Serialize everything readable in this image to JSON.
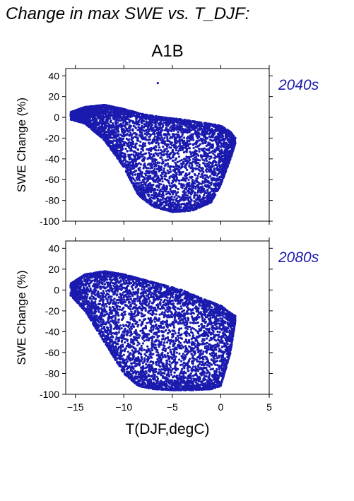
{
  "figure": {
    "title": "Change in max SWE vs. T_DJF:",
    "scenario": "A1B",
    "xlabel": "T(DJF,degC)",
    "point_color": "#1a1aaf"
  },
  "chart_data": [
    {
      "type": "scatter",
      "panel_label": "2040s",
      "ylabel": "SWE Change (%)",
      "xlim": [
        -16,
        5
      ],
      "ylim": [
        -100,
        47
      ],
      "xticks": [
        -15,
        -10,
        -5,
        0,
        5
      ],
      "yticks": [
        40,
        20,
        0,
        -20,
        -40,
        -60,
        -80,
        -100
      ],
      "show_x_tick_labels": false,
      "grid": false,
      "description_envelope": {
        "upper": [
          [
            -15.5,
            5
          ],
          [
            -14,
            10
          ],
          [
            -12,
            12
          ],
          [
            -10,
            8
          ],
          [
            -8,
            3
          ],
          [
            -6,
            0
          ],
          [
            -4,
            -2
          ],
          [
            -2,
            -5
          ],
          [
            0,
            -8
          ],
          [
            1,
            -14
          ],
          [
            1.5,
            -20
          ]
        ],
        "lower": [
          [
            -15.5,
            -2
          ],
          [
            -14,
            -6
          ],
          [
            -12,
            -22
          ],
          [
            -10,
            -48
          ],
          [
            -8.5,
            -75
          ],
          [
            -7,
            -86
          ],
          [
            -5,
            -91
          ],
          [
            -3,
            -90
          ],
          [
            -1,
            -82
          ],
          [
            0,
            -65
          ],
          [
            1,
            -40
          ],
          [
            1.5,
            -25
          ]
        ]
      },
      "outlier": [
        -6.5,
        33
      ],
      "n_points": 5200
    },
    {
      "type": "scatter",
      "panel_label": "2080s",
      "ylabel": "SWE Change (%)",
      "xlim": [
        -16,
        5
      ],
      "ylim": [
        -100,
        47
      ],
      "xticks": [
        -15,
        -10,
        -5,
        0,
        5
      ],
      "yticks": [
        40,
        20,
        0,
        -20,
        -40,
        -60,
        -80,
        -100
      ],
      "show_x_tick_labels": true,
      "grid": false,
      "description_envelope": {
        "upper": [
          [
            -15.5,
            6
          ],
          [
            -14,
            15
          ],
          [
            -12,
            18
          ],
          [
            -10,
            15
          ],
          [
            -8,
            10
          ],
          [
            -6,
            5
          ],
          [
            -4,
            0
          ],
          [
            -2,
            -8
          ],
          [
            0,
            -15
          ],
          [
            1,
            -22
          ],
          [
            1.5,
            -25
          ]
        ],
        "lower": [
          [
            -15.5,
            -5
          ],
          [
            -14,
            -20
          ],
          [
            -12,
            -50
          ],
          [
            -10,
            -80
          ],
          [
            -8.5,
            -92
          ],
          [
            -7,
            -95
          ],
          [
            -5,
            -96
          ],
          [
            -3,
            -96
          ],
          [
            -1,
            -95
          ],
          [
            0,
            -92
          ],
          [
            1,
            -60
          ],
          [
            1.5,
            -30
          ]
        ]
      },
      "outlier": null,
      "n_points": 5600
    }
  ]
}
